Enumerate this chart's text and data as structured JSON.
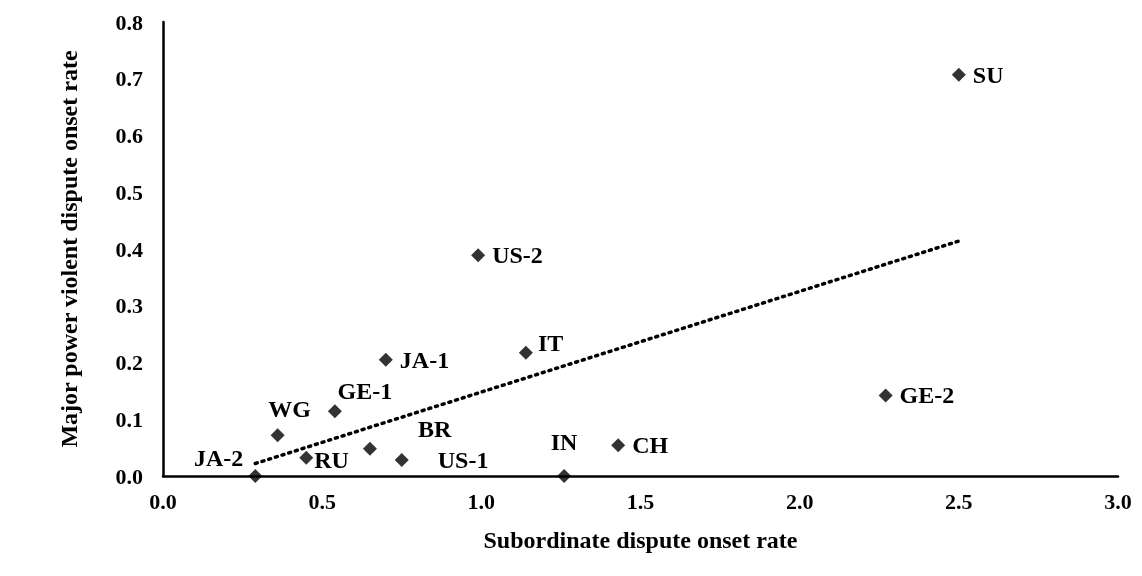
{
  "chart_data": {
    "type": "scatter",
    "xlabel": "Subordinate dispute onset rate",
    "ylabel": "Major power violent dispute onset rate",
    "xlim": [
      0,
      3
    ],
    "ylim": [
      0,
      0.8
    ],
    "xticks": [
      {
        "value": 0,
        "label": "0.0"
      },
      {
        "value": 0.5,
        "label": "0.5"
      },
      {
        "value": 1,
        "label": "1.0"
      },
      {
        "value": 1.5,
        "label": "1.5"
      },
      {
        "value": 2,
        "label": "2.0"
      },
      {
        "value": 2.5,
        "label": "2.5"
      },
      {
        "value": 3,
        "label": "3.0"
      }
    ],
    "yticks": [
      {
        "value": 0,
        "label": "0.0"
      },
      {
        "value": 0.1,
        "label": "0.1"
      },
      {
        "value": 0.2,
        "label": "0.2"
      },
      {
        "value": 0.3,
        "label": "0.3"
      },
      {
        "value": 0.4,
        "label": "0.4"
      },
      {
        "value": 0.5,
        "label": "0.5"
      },
      {
        "value": 0.6,
        "label": "0.6"
      },
      {
        "value": 0.7,
        "label": "0.7"
      },
      {
        "value": 0.8,
        "label": "0.8"
      }
    ],
    "grid": false,
    "marker": "diamond",
    "series": [
      {
        "type": "scatter",
        "color": "#000000",
        "x": [
          2.5,
          0.99,
          1.14,
          0.7,
          0.54,
          0.36,
          0.65,
          0.75,
          0.45,
          0.29,
          1.26,
          1.43,
          2.27
        ],
        "values": [
          0.707,
          0.389,
          0.217,
          0.205,
          0.114,
          0.072,
          0.048,
          0.028,
          0.032,
          0,
          0,
          0.054,
          0.142
        ]
      },
      {
        "type": "line",
        "color": "#000000",
        "line_style": "dotted",
        "marker": "none",
        "x": [
          0.29,
          2.5
        ],
        "values": [
          0.022,
          0.414
        ]
      }
    ],
    "annotations": [
      {
        "text": "SU",
        "x": 2.5,
        "y": 0.707
      },
      {
        "text": "US-2",
        "x": 0.99,
        "y": 0.389
      },
      {
        "text": "IT",
        "x": 1.14,
        "y": 0.217
      },
      {
        "text": "JA-1",
        "x": 0.7,
        "y": 0.205
      },
      {
        "text": "GE-1",
        "x": 0.54,
        "y": 0.114
      },
      {
        "text": "WG",
        "x": 0.36,
        "y": 0.072
      },
      {
        "text": "BR",
        "x": 0.65,
        "y": 0.048
      },
      {
        "text": "US-1",
        "x": 0.75,
        "y": 0.028
      },
      {
        "text": "RU",
        "x": 0.45,
        "y": 0.032
      },
      {
        "text": "JA-2",
        "x": 0.29,
        "y": 0
      },
      {
        "text": "IN",
        "x": 1.26,
        "y": 0
      },
      {
        "text": "CH",
        "x": 1.43,
        "y": 0.054
      },
      {
        "text": "GE-2",
        "x": 2.27,
        "y": 0.142
      }
    ]
  }
}
